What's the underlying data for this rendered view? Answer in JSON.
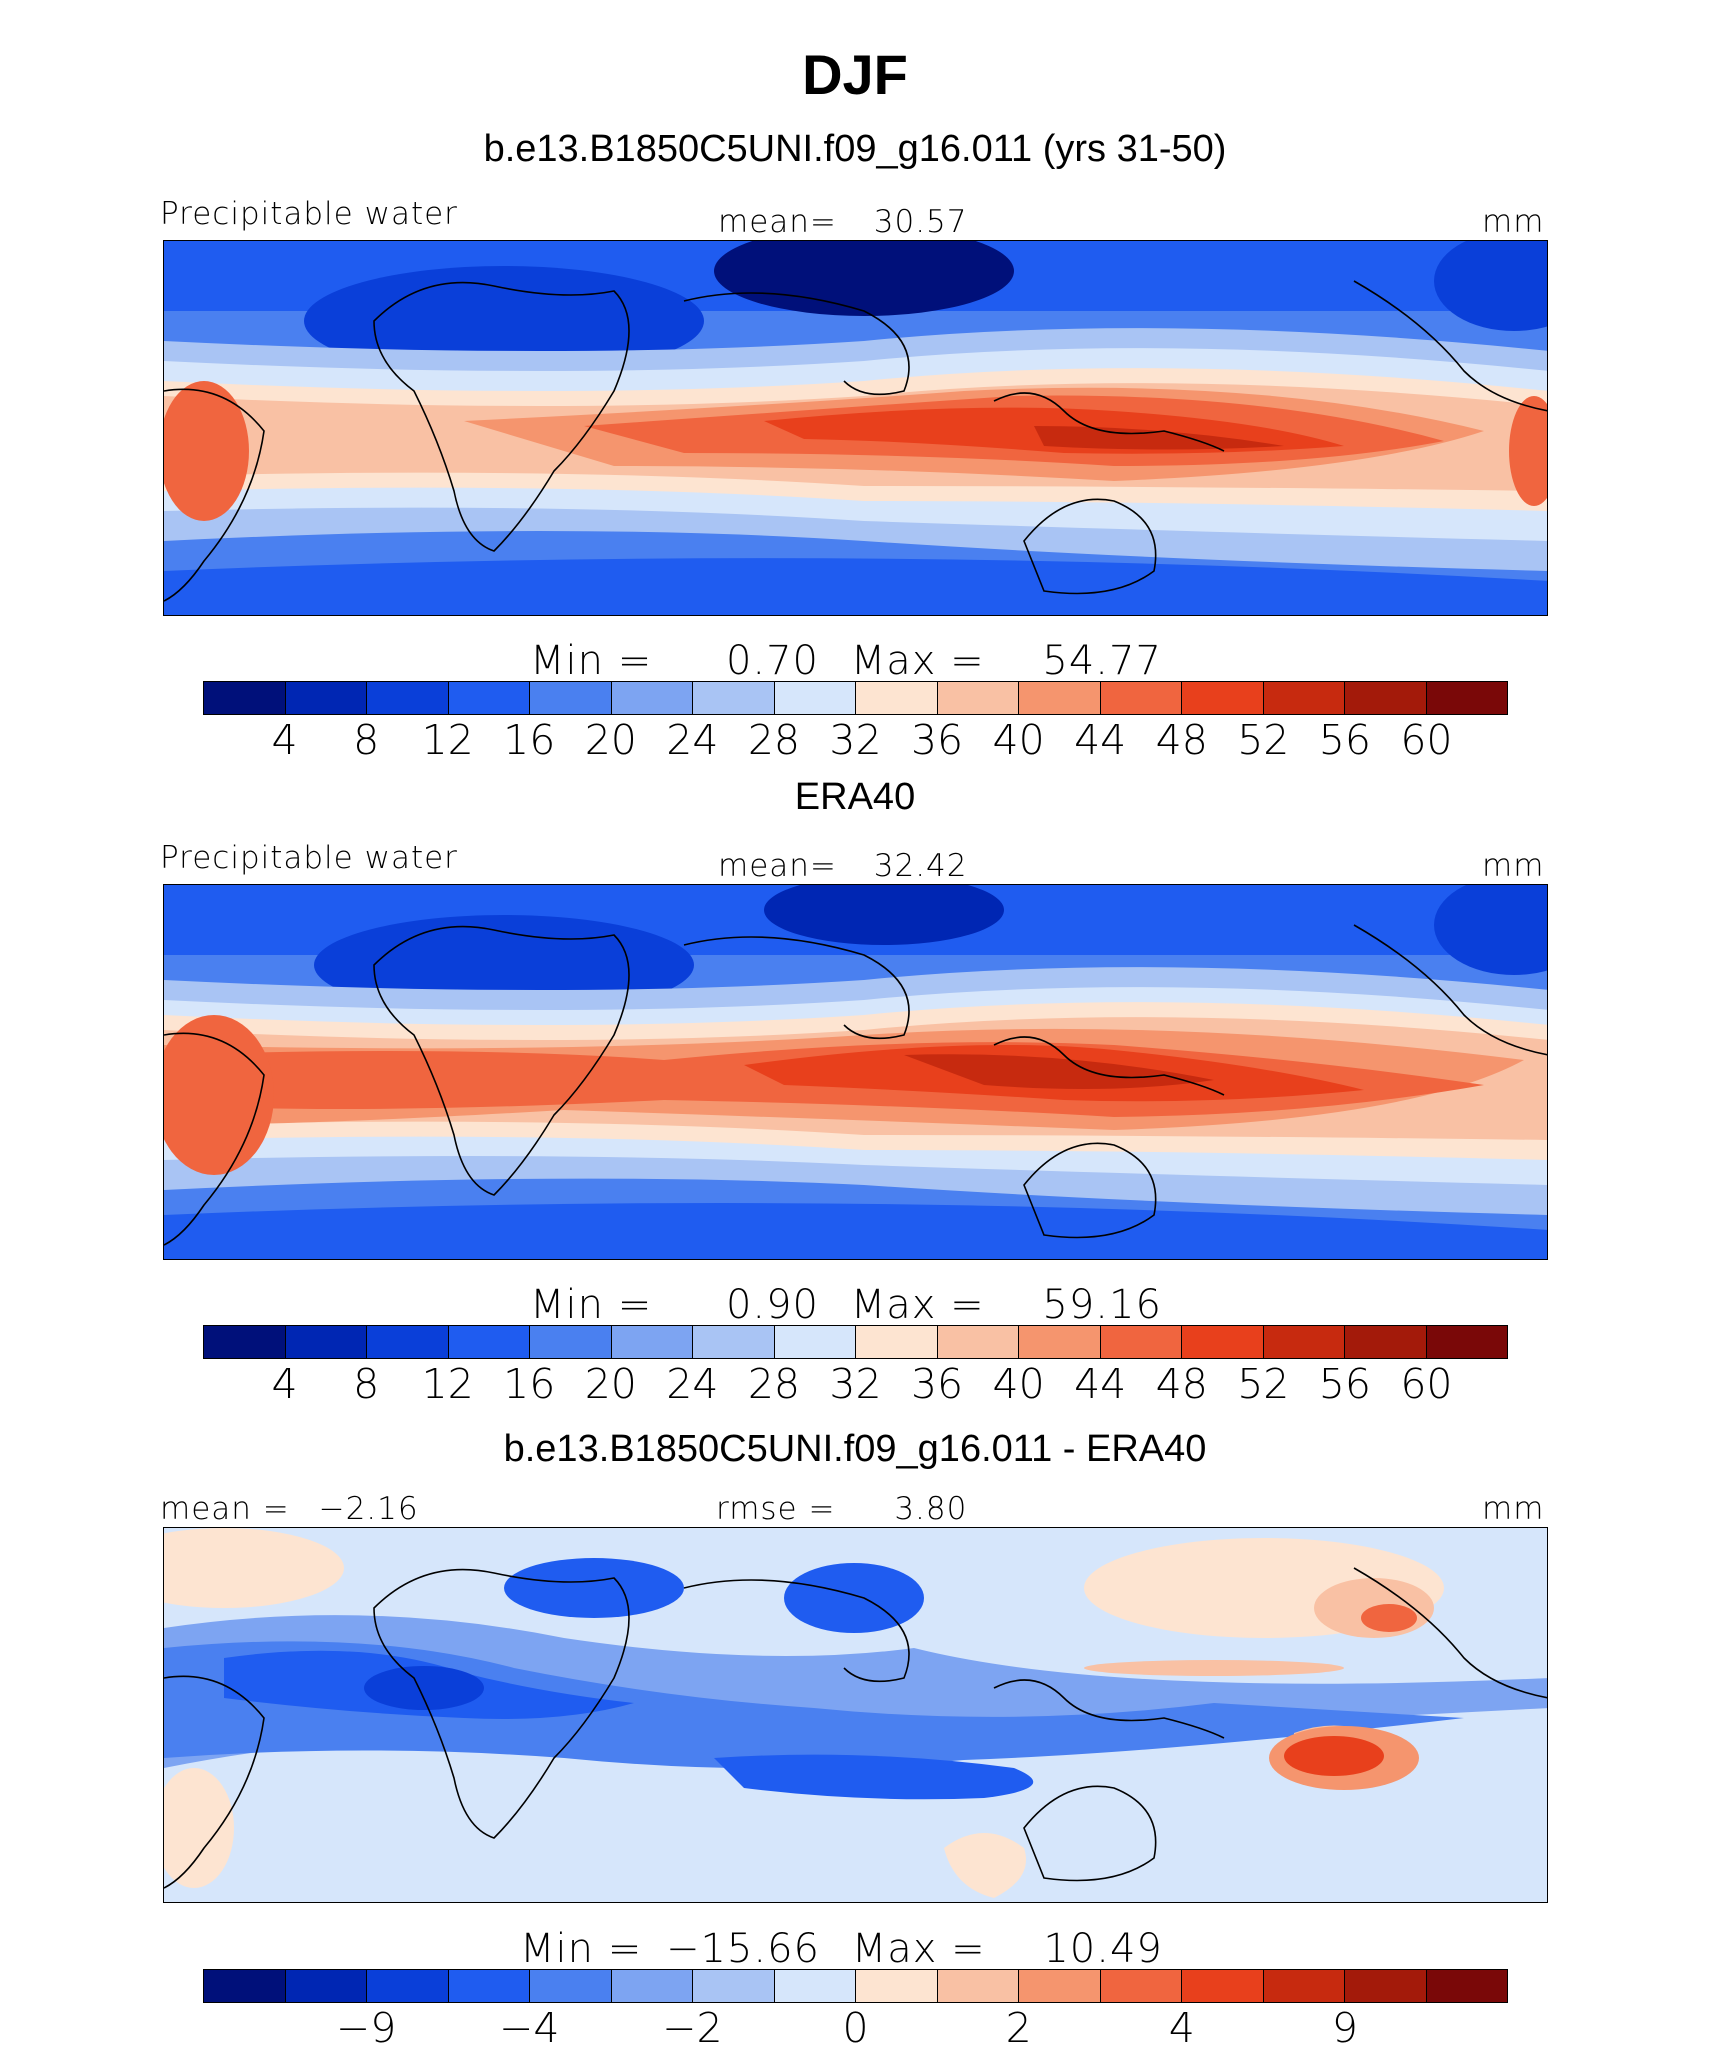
{
  "figure": {
    "title": "DJF",
    "season": "DJF"
  },
  "colors": {
    "mean_scale": [
      "#00107a",
      "#0026b3",
      "#0a3fd9",
      "#1f5cf0",
      "#4a80f0",
      "#7da4f2",
      "#a9c4f4",
      "#d6e6fb",
      "#fde4d1",
      "#f9c1a4",
      "#f5956e",
      "#f0653f",
      "#e8401c",
      "#c72a0f",
      "#a31a0a",
      "#7a0808"
    ],
    "diff_scale": [
      "#00107a",
      "#0026b3",
      "#0a3fd9",
      "#1f5cf0",
      "#4a80f0",
      "#7da4f2",
      "#a9c4f4",
      "#d6e6fb",
      "#fde4d1",
      "#f9c1a4",
      "#f5956e",
      "#f0653f",
      "#e8401c",
      "#c72a0f",
      "#a31a0a",
      "#7a0808"
    ],
    "background": "#ffffff",
    "coastline": "#000000"
  },
  "chart_data": [
    {
      "type": "heatmap",
      "title": "b.e13.B1850C5UNI.f09_g16.011 (yrs 31-50)",
      "variable": "Precipitable water",
      "units": "mm",
      "mean_label": "mean=",
      "mean": "30.57",
      "min_label": "Min  =",
      "min": "0.70",
      "max_label": "Max  =",
      "max": "54.77",
      "levels": [
        "4",
        "8",
        "12",
        "16",
        "20",
        "24",
        "28",
        "32",
        "36",
        "40",
        "44",
        "48",
        "52",
        "56",
        "60"
      ]
    },
    {
      "type": "heatmap",
      "title": "ERA40",
      "variable": "Precipitable water",
      "units": "mm",
      "mean_label": "mean=",
      "mean": "32.42",
      "min_label": "Min  =",
      "min": "0.90",
      "max_label": "Max  =",
      "max": "59.16",
      "levels": [
        "4",
        "8",
        "12",
        "16",
        "20",
        "24",
        "28",
        "32",
        "36",
        "40",
        "44",
        "48",
        "52",
        "56",
        "60"
      ]
    },
    {
      "type": "heatmap",
      "title": "b.e13.B1850C5UNI.f09_g16.011 - ERA40",
      "left_label": "mean  =",
      "left_value": "−2.16",
      "rmse_label": "rmse  =",
      "rmse": "3.80",
      "units": "mm",
      "min_label": "Min  =",
      "min": "−15.66",
      "max_label": "Max  =",
      "max": "10.49",
      "levels": [
        "−9",
        "−4",
        "−2",
        "0",
        "2",
        "4",
        "9"
      ]
    }
  ]
}
